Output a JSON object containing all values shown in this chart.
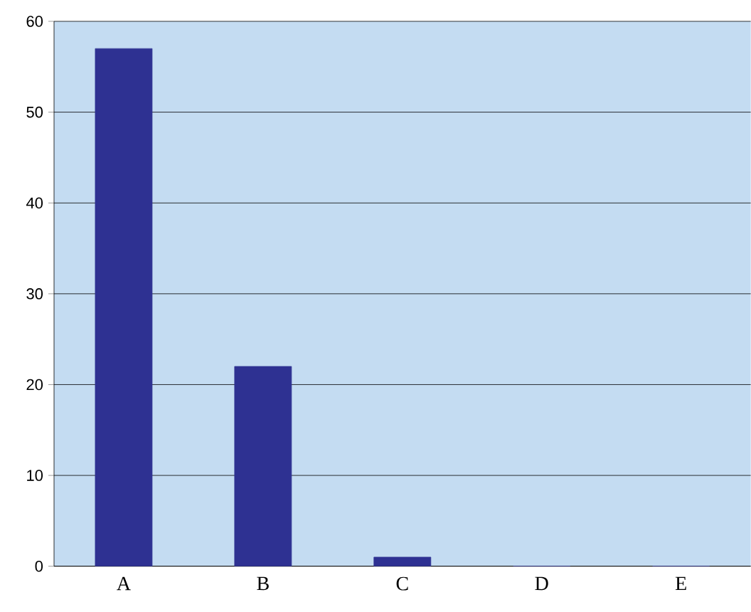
{
  "chart_data": {
    "type": "bar",
    "categories": [
      "A",
      "B",
      "C",
      "D",
      "E"
    ],
    "values": [
      57,
      22,
      1,
      0,
      0
    ],
    "color": "#2e3192",
    "ylim": [
      0,
      60
    ],
    "yticks": [
      0,
      10,
      20,
      30,
      40,
      50,
      60
    ],
    "grid": "y"
  }
}
